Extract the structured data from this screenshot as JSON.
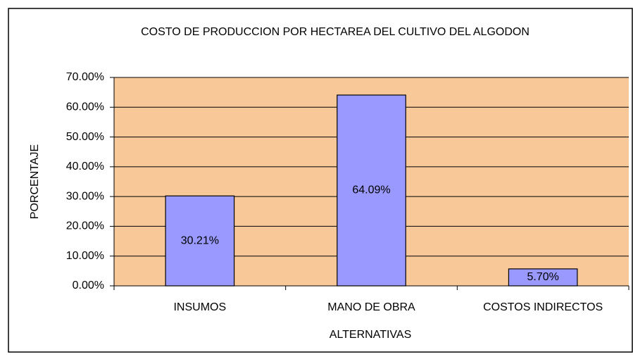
{
  "chart_data": {
    "type": "bar",
    "title": "COSTO DE PRODUCCION POR HECTAREA DEL CULTIVO DEL ALGODON",
    "x_label": "ALTERNATIVAS",
    "y_label": "PORCENTAJE",
    "categories": [
      "INSUMOS",
      "MANO DE OBRA",
      "COSTOS INDIRECTOS"
    ],
    "values": [
      30.21,
      64.09,
      5.7
    ],
    "value_labels": [
      "30.21%",
      "64.09%",
      "5.70%"
    ],
    "color": "#9999ff",
    "plot_background": "#f8c898",
    "ylim": [
      0,
      70
    ],
    "yticks": [
      {
        "value": 0,
        "label": "0.00%"
      },
      {
        "value": 10,
        "label": "10.00%"
      },
      {
        "value": 20,
        "label": "20.00%"
      },
      {
        "value": 30,
        "label": "30.00%"
      },
      {
        "value": 40,
        "label": "40.00%"
      },
      {
        "value": 50,
        "label": "50.00%"
      },
      {
        "value": 60,
        "label": "60.00%"
      },
      {
        "value": 70,
        "label": "70.00%"
      }
    ],
    "grid": true
  }
}
